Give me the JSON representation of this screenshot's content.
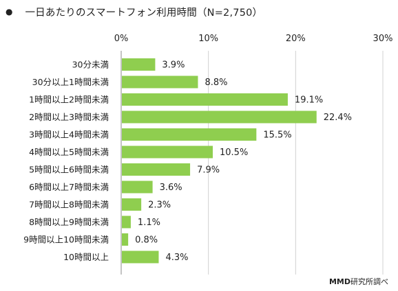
{
  "title": "一日あたりのスマートフォン利用時間（N=2,750）",
  "title_bullet": "●",
  "source": {
    "brand": "MMD",
    "suffix": "研究所調べ"
  },
  "chart_data": {
    "type": "bar",
    "orientation": "horizontal",
    "categories": [
      "30分未満",
      "30分以上1時間未満",
      "1時間以上2時間未満",
      "2時間以上3時間未満",
      "3時間以上4時間未満",
      "4時間以上5時間未満",
      "5時間以上6時間未満",
      "6時間以上7時間未満",
      "7時間以上8時間未満",
      "8時間以上9時間未満",
      "9時間以上10時間未満",
      "10時間以上"
    ],
    "values": [
      3.9,
      8.8,
      19.1,
      22.4,
      15.5,
      10.5,
      7.9,
      3.6,
      2.3,
      1.1,
      0.8,
      4.3
    ],
    "value_labels": [
      "3.9%",
      "8.8%",
      "19.1%",
      "22.4%",
      "15.5%",
      "10.5%",
      "7.9%",
      "3.6%",
      "2.3%",
      "1.1%",
      "0.8%",
      "4.3%"
    ],
    "xlim": [
      0,
      30
    ],
    "x_ticks": [
      "0%",
      "10%",
      "20%",
      "30%"
    ],
    "x_tick_values": [
      0,
      10,
      20,
      30
    ],
    "x_axis_position": "top",
    "grid": true,
    "bar_color": "#8fce4f",
    "grid_color": "#d0d0d0",
    "axis_color": "#888888"
  }
}
